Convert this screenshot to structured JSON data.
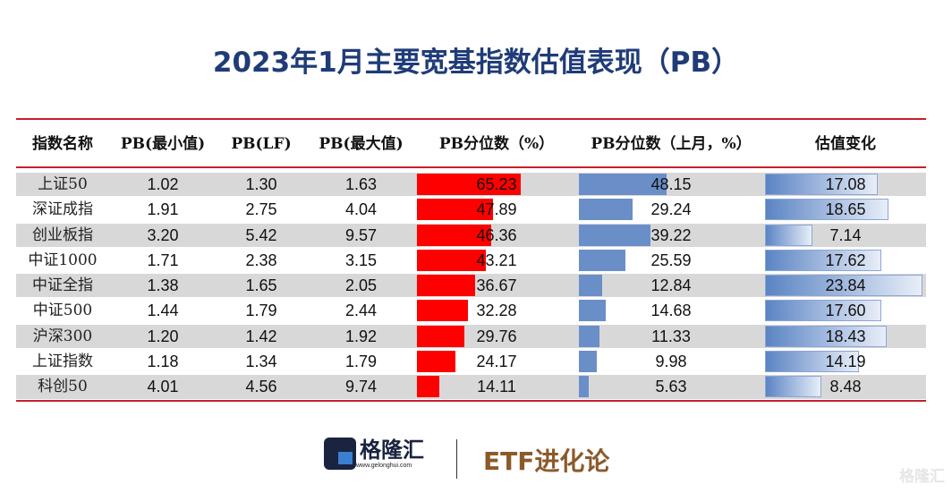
{
  "title": "2023年1月主要宽基指数估值表现（PB）",
  "colors": {
    "title": "#1f3c78",
    "rule": "#c8202a",
    "pct_bar": "#ff0000",
    "last_bar": "#6a8fc8",
    "change_bar": "#5b84c4",
    "row_alt": "#d9d8d9"
  },
  "chart_data": {
    "type": "table",
    "columns": [
      "指数名称",
      "PB(最小值)",
      "PB(LF)",
      "PB(最大值)",
      "PB分位数（%）",
      "PB分位数（上月，%）",
      "估值变化"
    ],
    "rows": [
      {
        "name": "上证50",
        "min": "1.02",
        "lf": "1.30",
        "max": "1.63",
        "pct": "65.23",
        "last": "48.15",
        "change": "17.08"
      },
      {
        "name": "深证成指",
        "min": "1.91",
        "lf": "2.75",
        "max": "4.04",
        "pct": "47.89",
        "last": "29.24",
        "change": "18.65"
      },
      {
        "name": "创业板指",
        "min": "3.20",
        "lf": "5.42",
        "max": "9.57",
        "pct": "46.36",
        "last": "39.22",
        "change": "7.14"
      },
      {
        "name": "中证1000",
        "min": "1.71",
        "lf": "2.38",
        "max": "3.15",
        "pct": "43.21",
        "last": "25.59",
        "change": "17.62"
      },
      {
        "name": "中证全指",
        "min": "1.38",
        "lf": "1.65",
        "max": "2.05",
        "pct": "36.67",
        "last": "12.84",
        "change": "23.84"
      },
      {
        "name": "中证500",
        "min": "1.44",
        "lf": "1.79",
        "max": "2.44",
        "pct": "32.28",
        "last": "14.68",
        "change": "17.60"
      },
      {
        "name": "沪深300",
        "min": "1.20",
        "lf": "1.42",
        "max": "1.92",
        "pct": "29.76",
        "last": "11.33",
        "change": "18.43"
      },
      {
        "name": "上证指数",
        "min": "1.18",
        "lf": "1.34",
        "max": "1.79",
        "pct": "24.17",
        "last": "9.98",
        "change": "14.19"
      },
      {
        "name": "科创50",
        "min": "4.01",
        "lf": "4.56",
        "max": "9.74",
        "pct": "14.11",
        "last": "5.63",
        "change": "8.48"
      }
    ]
  },
  "footer": {
    "brand": "格隆汇",
    "url": "www.gelonghui.com",
    "column": "ETF进化论",
    "watermark": "格隆汇"
  }
}
